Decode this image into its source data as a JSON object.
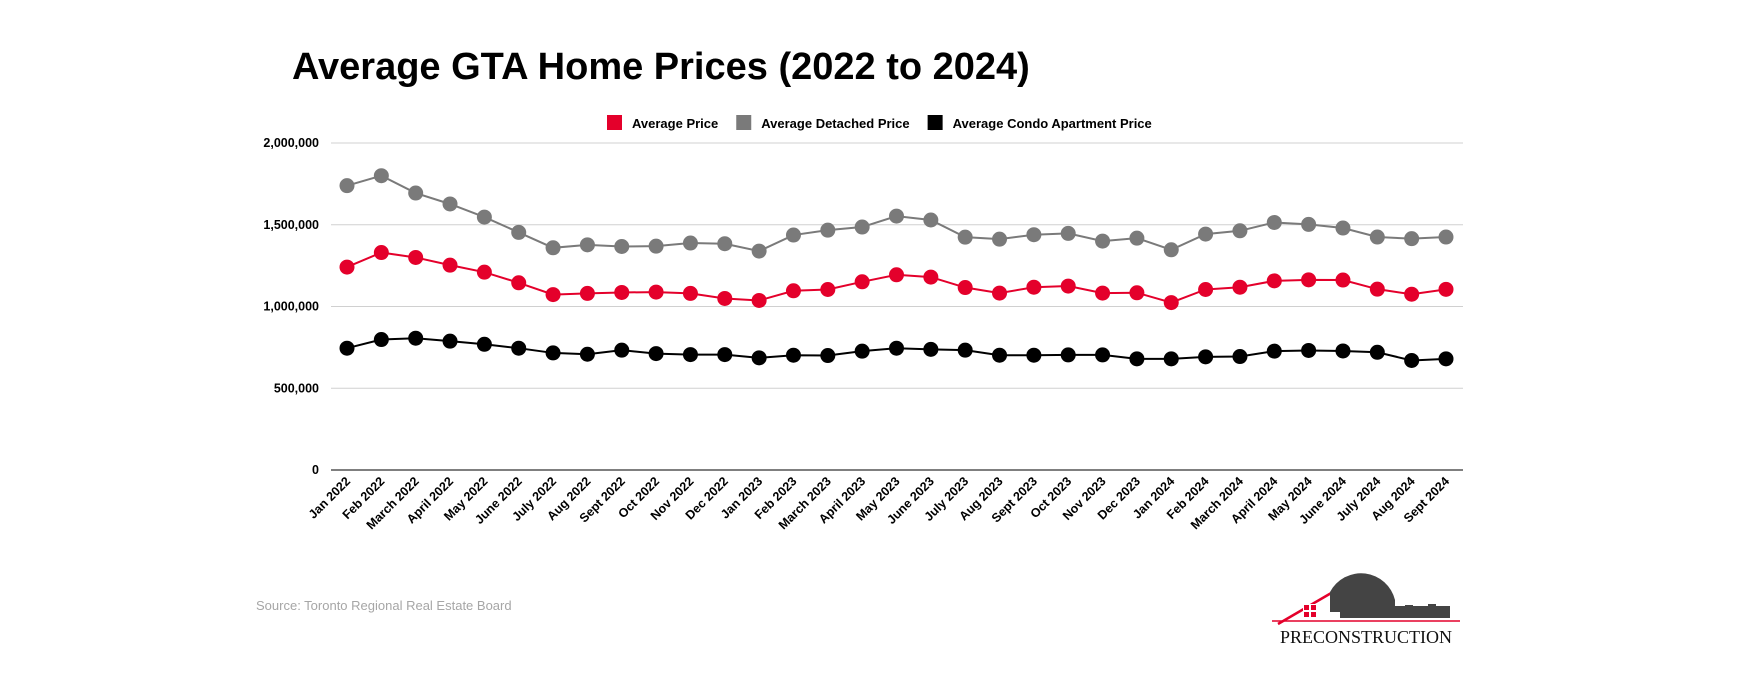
{
  "chart_data": {
    "type": "line",
    "title": "Average GTA Home Prices (2022 to 2024)",
    "xlabel": "",
    "ylabel": "",
    "ylim": [
      0,
      2000000
    ],
    "yticks": [
      0,
      500000,
      1000000,
      1500000,
      2000000
    ],
    "ytick_labels": [
      "0",
      "500,000",
      "1,000,000",
      "1,500,000",
      "2,000,000"
    ],
    "grid": true,
    "legend_position": "top-center",
    "categories": [
      "Jan 2022",
      "Feb 2022",
      "March 2022",
      "April 2022",
      "May 2022",
      "June 2022",
      "July 2022",
      "Aug 2022",
      "Sept 2022",
      "Oct 2022",
      "Nov 2022",
      "Dec 2022",
      "Jan 2023",
      "Feb 2023",
      "March 2023",
      "April 2023",
      "May 2023",
      "June 2023",
      "July 2023",
      "Aug 2023",
      "Sept 2023",
      "Oct 2023",
      "Nov 2023",
      "Dec 2023",
      "Jan 2024",
      "Feb 2024",
      "March 2024",
      "April 2024",
      "May 2024",
      "June 2024",
      "July 2024",
      "Aug 2024",
      "Sept 2024"
    ],
    "series": [
      {
        "name": "Average Price",
        "color": "#e4002b",
        "values": [
          1241000,
          1330000,
          1300000,
          1253000,
          1210000,
          1145000,
          1073000,
          1080000,
          1086000,
          1088000,
          1080000,
          1049000,
          1037000,
          1096000,
          1104000,
          1151000,
          1194000,
          1180000,
          1116000,
          1082000,
          1118000,
          1125000,
          1082000,
          1084000,
          1024000,
          1104000,
          1118000,
          1157000,
          1163000,
          1162000,
          1106000,
          1075000,
          1105000
        ]
      },
      {
        "name": "Average Detached Price",
        "color": "#7a7a7a",
        "values": [
          1739000,
          1800000,
          1694000,
          1627000,
          1547000,
          1453000,
          1359000,
          1377000,
          1367000,
          1369000,
          1388000,
          1384000,
          1339000,
          1437000,
          1467000,
          1486000,
          1553000,
          1529000,
          1424000,
          1412000,
          1439000,
          1447000,
          1400000,
          1418000,
          1347000,
          1443000,
          1463000,
          1514000,
          1502000,
          1480000,
          1425000,
          1415000,
          1425000
        ]
      },
      {
        "name": "Average Condo Apartment Price",
        "color": "#000000",
        "values": [
          745000,
          798000,
          806000,
          788000,
          769000,
          745000,
          716000,
          708000,
          733000,
          712000,
          706000,
          706000,
          686000,
          702000,
          700000,
          727000,
          745000,
          738000,
          733000,
          702000,
          702000,
          704000,
          704000,
          680000,
          680000,
          692000,
          694000,
          727000,
          731000,
          728000,
          720000,
          670000,
          680000
        ]
      }
    ]
  },
  "source": "Source: Toronto Regional Real Estate Board",
  "logo_text": "PRECONSTRUCTION"
}
